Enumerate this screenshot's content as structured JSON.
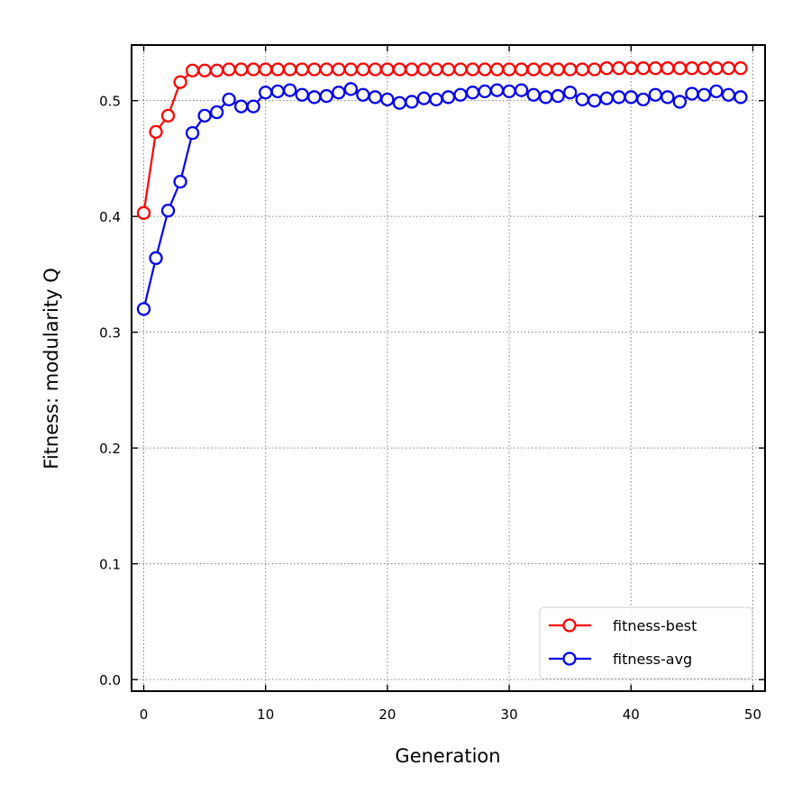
{
  "chart_data": {
    "type": "line",
    "xlabel": "Generation",
    "ylabel": "Fitness: modularity Q",
    "xlim": [
      -1,
      51
    ],
    "ylim": [
      -0.01,
      0.548
    ],
    "xticks": [
      0,
      10,
      20,
      30,
      40,
      50
    ],
    "xtick_labels": [
      "0",
      "10",
      "20",
      "30",
      "40",
      "50"
    ],
    "yticks": [
      0.0,
      0.1,
      0.2,
      0.3,
      0.4,
      0.5
    ],
    "ytick_labels": [
      "0.0",
      "0.1",
      "0.2",
      "0.3",
      "0.4",
      "0.5"
    ],
    "grid": true,
    "legend_position": "bottom-right",
    "x": [
      0,
      1,
      2,
      3,
      4,
      5,
      6,
      7,
      8,
      9,
      10,
      11,
      12,
      13,
      14,
      15,
      16,
      17,
      18,
      19,
      20,
      21,
      22,
      23,
      24,
      25,
      26,
      27,
      28,
      29,
      30,
      31,
      32,
      33,
      34,
      35,
      36,
      37,
      38,
      39,
      40,
      41,
      42,
      43,
      44,
      45,
      46,
      47,
      48,
      49
    ],
    "series": [
      {
        "name": "fitness-best",
        "color": "#ff0000",
        "marker": "open-circle",
        "values": [
          0.403,
          0.473,
          0.487,
          0.516,
          0.526,
          0.526,
          0.526,
          0.527,
          0.527,
          0.527,
          0.527,
          0.527,
          0.527,
          0.527,
          0.527,
          0.527,
          0.527,
          0.527,
          0.527,
          0.527,
          0.527,
          0.527,
          0.527,
          0.527,
          0.527,
          0.527,
          0.527,
          0.527,
          0.527,
          0.527,
          0.527,
          0.527,
          0.527,
          0.527,
          0.527,
          0.527,
          0.527,
          0.527,
          0.528,
          0.528,
          0.528,
          0.528,
          0.528,
          0.528,
          0.528,
          0.528,
          0.528,
          0.528,
          0.528,
          0.528
        ]
      },
      {
        "name": "fitness-avg",
        "color": "#0000ee",
        "marker": "open-circle",
        "values": [
          0.32,
          0.364,
          0.405,
          0.43,
          0.472,
          0.487,
          0.49,
          0.501,
          0.495,
          0.495,
          0.507,
          0.508,
          0.509,
          0.505,
          0.503,
          0.504,
          0.507,
          0.51,
          0.505,
          0.503,
          0.501,
          0.498,
          0.499,
          0.502,
          0.501,
          0.503,
          0.505,
          0.507,
          0.508,
          0.509,
          0.508,
          0.509,
          0.505,
          0.503,
          0.504,
          0.507,
          0.501,
          0.5,
          0.502,
          0.503,
          0.503,
          0.501,
          0.505,
          0.503,
          0.499,
          0.506,
          0.505,
          0.508,
          0.505,
          0.503
        ]
      }
    ]
  }
}
